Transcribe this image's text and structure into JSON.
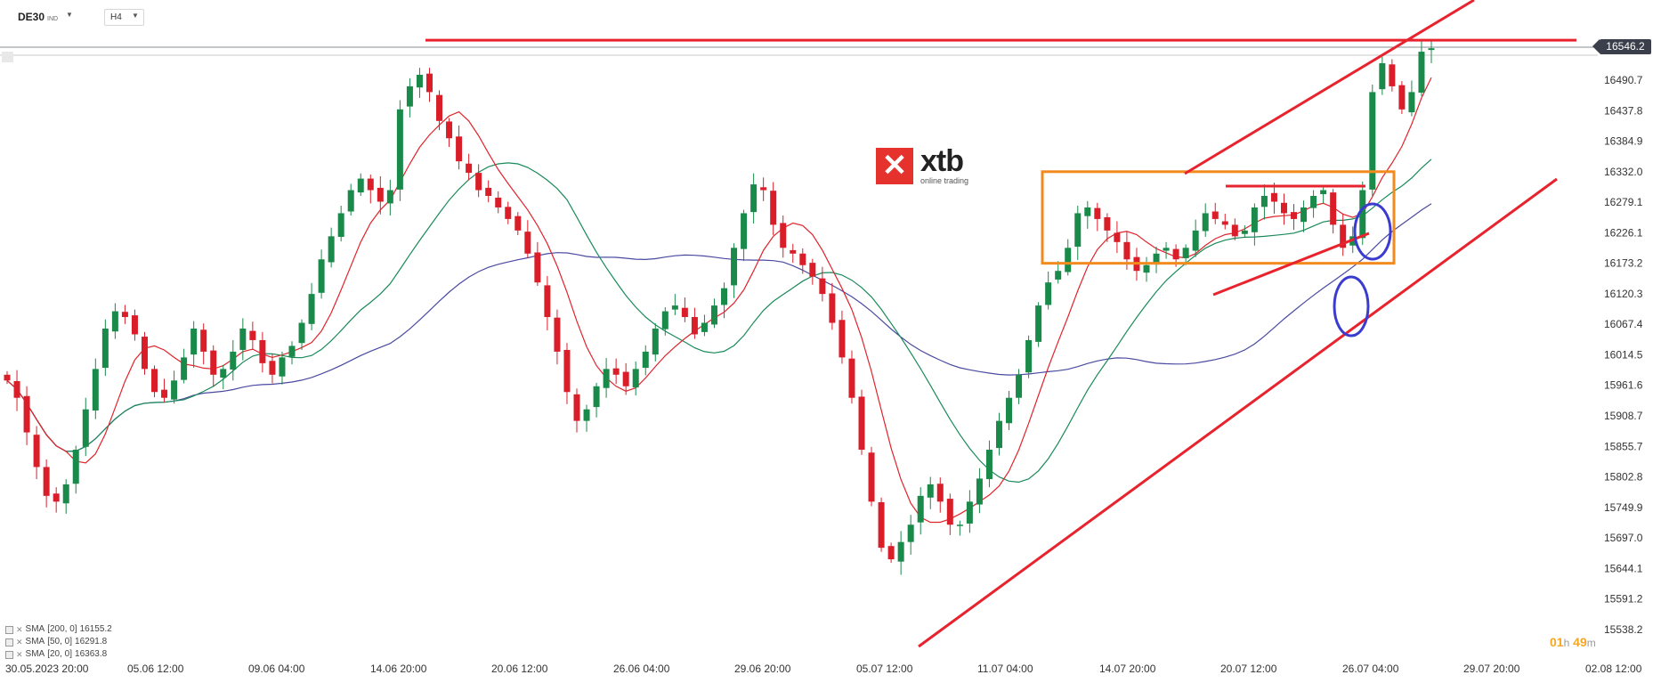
{
  "toolbar": {
    "symbol": "DE30",
    "symbol_suffix": "IND",
    "timeframe": "H4"
  },
  "indicators": [
    {
      "label": "SMA",
      "params": "[200,  0]",
      "value": "16155.2",
      "color": "#4a4aa0"
    },
    {
      "label": "SMA",
      "params": "[50,  0]",
      "value": "16291.8",
      "color": "#1a8a5a"
    },
    {
      "label": "SMA",
      "params": "[20,  0]",
      "value": "16363.8",
      "color": "#e0242c"
    }
  ],
  "timer": {
    "hours": "01",
    "hours_unit": "h",
    "minutes": "49",
    "minutes_unit": "m"
  },
  "last_price": "16546.2",
  "logo": {
    "word": "xtb",
    "tagline": "online trading"
  },
  "chart_data": {
    "type": "candlestick",
    "y_ticks": [
      "16490.7",
      "16437.8",
      "16384.9",
      "16332.0",
      "16279.1",
      "16226.1",
      "16173.2",
      "16120.3",
      "16067.4",
      "16014.5",
      "15961.6",
      "15908.7",
      "15855.7",
      "15802.8",
      "15749.9",
      "15697.0",
      "15644.1",
      "15591.2",
      "15538.2"
    ],
    "x_ticks": [
      "30.05.2023  20:00",
      "05.06  12:00",
      "09.06  04:00",
      "14.06  20:00",
      "20.06  12:00",
      "26.06  04:00",
      "29.06  20:00",
      "05.07  12:00",
      "11.07  04:00",
      "14.07  20:00",
      "20.07  12:00",
      "26.07  04:00",
      "29.07  20:00",
      "02.08  12:00"
    ],
    "ylim": [
      15538.2,
      16590
    ],
    "colors": {
      "up": "#1a8a4a",
      "down": "#d91e2a",
      "annotation": "#e8232e",
      "box": "#f28a1e",
      "circle": "#3b3bd0"
    },
    "annotations": {
      "resistance": 16560,
      "box": {
        "top": 16332.0,
        "bottom": 16173.2
      },
      "channel_upper": [
        [
          0.0,
          16585
        ],
        [
          0.0,
          0
        ]
      ],
      "note": ""
    },
    "closes": [
      15970,
      15940,
      15880,
      15820,
      15770,
      15760,
      15790,
      15850,
      15920,
      15990,
      16060,
      16090,
      16080,
      16050,
      15990,
      15950,
      15940,
      15970,
      16010,
      16060,
      16020,
      15980,
      15990,
      16020,
      16060,
      16040,
      16000,
      15980,
      16010,
      16030,
      16070,
      16120,
      16180,
      16220,
      16260,
      16300,
      16320,
      16300,
      16280,
      16300,
      16440,
      16480,
      16500,
      16470,
      16420,
      16390,
      16350,
      16330,
      16300,
      16290,
      16270,
      16250,
      16230,
      16190,
      16140,
      16080,
      16020,
      15950,
      15900,
      15920,
      15960,
      15990,
      15980,
      15960,
      15990,
      16020,
      16060,
      16090,
      16100,
      16080,
      16050,
      16070,
      16100,
      16130,
      16200,
      16260,
      16310,
      16300,
      16240,
      16200,
      16190,
      16170,
      16150,
      16120,
      16070,
      16010,
      15940,
      15850,
      15760,
      15680,
      15660,
      15690,
      15720,
      15770,
      15790,
      15760,
      15720,
      15720,
      15760,
      15800,
      15850,
      15900,
      15940,
      15980,
      16040,
      16100,
      16140,
      16160,
      16200,
      16260,
      16270,
      16250,
      16230,
      16210,
      16180,
      16160,
      16170,
      16190,
      16200,
      16180,
      16200,
      16230,
      16260,
      16250,
      16240,
      16220,
      16230,
      16270,
      16290,
      16280,
      16260,
      16250,
      16270,
      16290,
      16300,
      16240,
      16200,
      16220,
      16300,
      16470,
      16520,
      16480,
      16440,
      16470,
      16540,
      16546
    ]
  }
}
